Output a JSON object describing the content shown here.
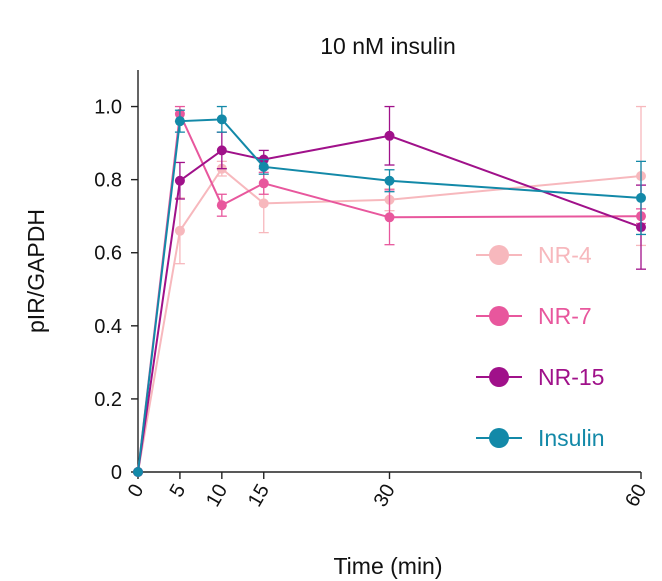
{
  "chart_data": {
    "type": "line",
    "title": "10 nM insulin",
    "xlabel": "Time (min)",
    "ylabel": "pIR/GAPDH",
    "x": [
      0,
      5,
      10,
      15,
      30,
      60
    ],
    "x_tick_labels": [
      "0",
      "5",
      "10",
      "15",
      "30",
      "60"
    ],
    "y_tick_labels": [
      "0",
      "0.2",
      "0.4",
      "0.6",
      "0.8",
      "1.0"
    ],
    "xlim": [
      0,
      60
    ],
    "ylim": [
      0,
      1.1
    ],
    "grid": false,
    "legend_position": "right",
    "series": [
      {
        "name": "NR-4",
        "color": "#f7b8bd",
        "values": [
          0,
          0.66,
          0.83,
          0.735,
          0.745,
          0.81
        ],
        "error": [
          0,
          0.09,
          0.02,
          0.08,
          0.03,
          0.19
        ]
      },
      {
        "name": "NR-7",
        "color": "#e8579d",
        "values": [
          0,
          0.98,
          0.73,
          0.79,
          0.697,
          0.7
        ],
        "error": [
          0,
          0.02,
          0.03,
          0.03,
          0.075,
          0.02
        ]
      },
      {
        "name": "NR-15",
        "color": "#a0118a",
        "values": [
          0,
          0.797,
          0.88,
          0.855,
          0.92,
          0.67
        ],
        "error": [
          0,
          0.05,
          0.05,
          0.025,
          0.08,
          0.115
        ]
      },
      {
        "name": "Insulin",
        "color": "#1389a8",
        "values": [
          0,
          0.96,
          0.965,
          0.835,
          0.797,
          0.75
        ],
        "error": [
          0,
          0.03,
          0.035,
          0.02,
          0.03,
          0.1
        ]
      }
    ]
  }
}
